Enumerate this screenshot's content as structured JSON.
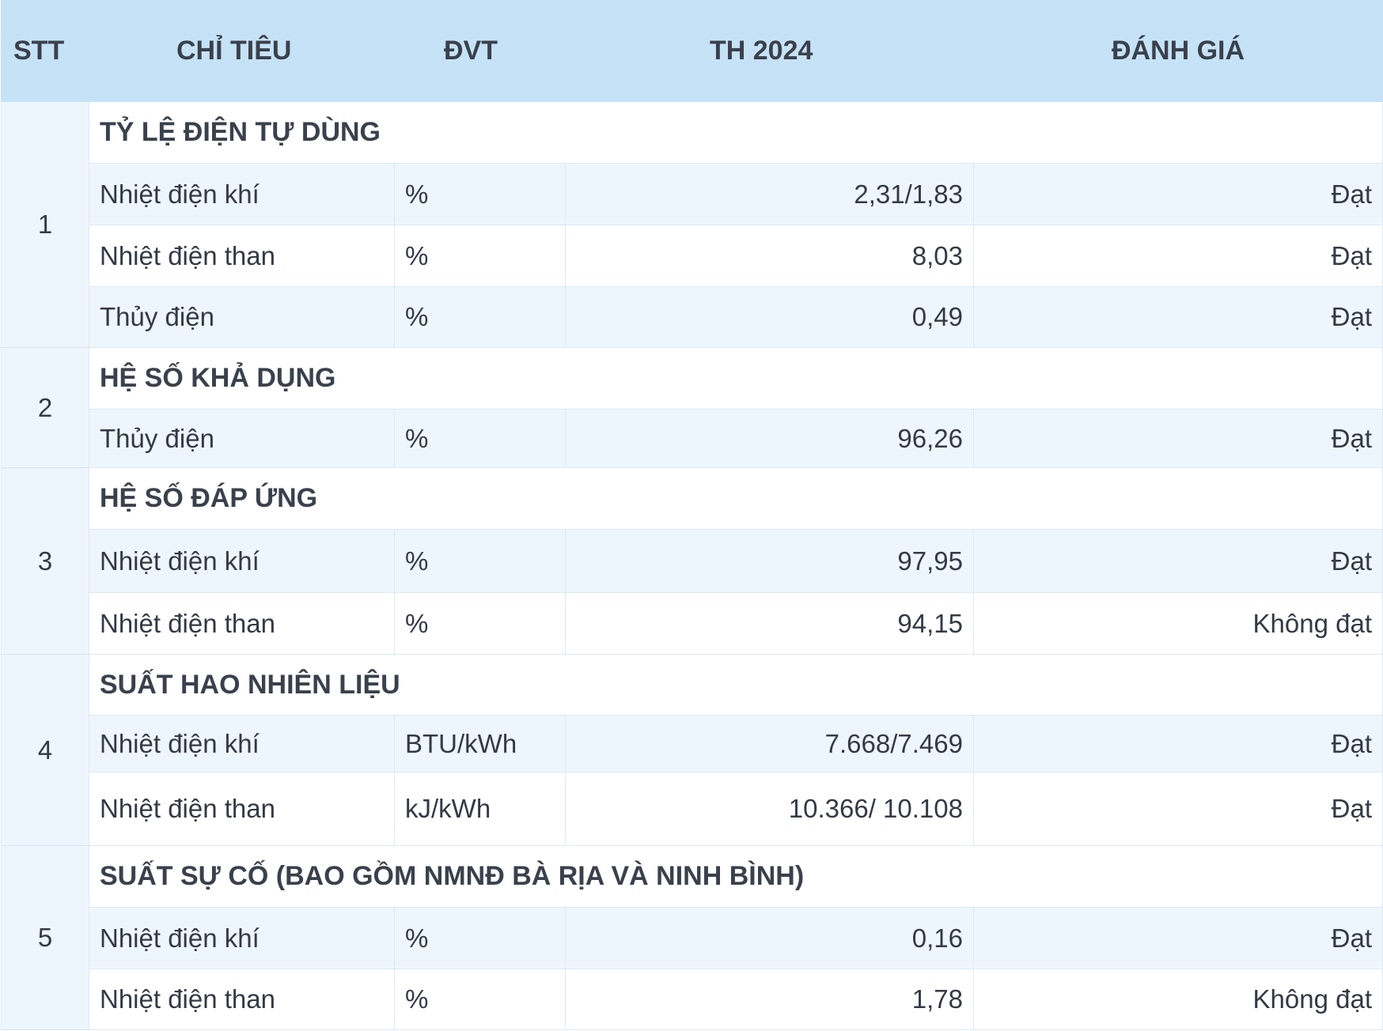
{
  "header": {
    "stt": "STT",
    "name": "CHỈ TIÊU",
    "unit": "ĐVT",
    "value": "TH 2024",
    "eval": "ĐÁNH GIÁ"
  },
  "sections": [
    {
      "stt": "1",
      "title": "TỶ LỆ ĐIỆN TỰ DÙNG",
      "rows": [
        {
          "name": "Nhiệt điện khí",
          "unit": "%",
          "value": "2,31/1,83",
          "eval": "Đạt"
        },
        {
          "name": "Nhiệt điện than",
          "unit": "%",
          "value": "8,03",
          "eval": "Đạt"
        },
        {
          "name": "Thủy điện",
          "unit": "%",
          "value": "0,49",
          "eval": "Đạt"
        }
      ]
    },
    {
      "stt": "2",
      "title": "HỆ SỐ KHẢ DỤNG",
      "rows": [
        {
          "name": "Thủy điện",
          "unit": "%",
          "value": "96,26",
          "eval": "Đạt"
        }
      ]
    },
    {
      "stt": "3",
      "title": "HỆ SỐ ĐÁP ỨNG",
      "rows": [
        {
          "name": "Nhiệt điện khí",
          "unit": "%",
          "value": "97,95",
          "eval": "Đạt"
        },
        {
          "name": "Nhiệt điện than",
          "unit": "%",
          "value": "94,15",
          "eval": "Không đạt"
        }
      ]
    },
    {
      "stt": "4",
      "title": "SUẤT HAO NHIÊN LIỆU",
      "rows": [
        {
          "name": "Nhiệt điện khí",
          "unit": "BTU/kWh",
          "value": "7.668/7.469",
          "eval": "Đạt"
        },
        {
          "name": "Nhiệt điện than",
          "unit": "kJ/kWh",
          "value": "10.366/ 10.108",
          "eval": "Đạt"
        }
      ]
    },
    {
      "stt": "5",
      "title": "SUẤT SỰ CỐ (BAO GỒM NMNĐ BÀ RỊA VÀ NINH BÌNH)",
      "rows": [
        {
          "name": "Nhiệt điện khí",
          "unit": "%",
          "value": "0,16",
          "eval": "Đạt"
        },
        {
          "name": "Nhiệt điện than",
          "unit": "%",
          "value": "1,78",
          "eval": "Không đạt"
        }
      ]
    }
  ]
}
